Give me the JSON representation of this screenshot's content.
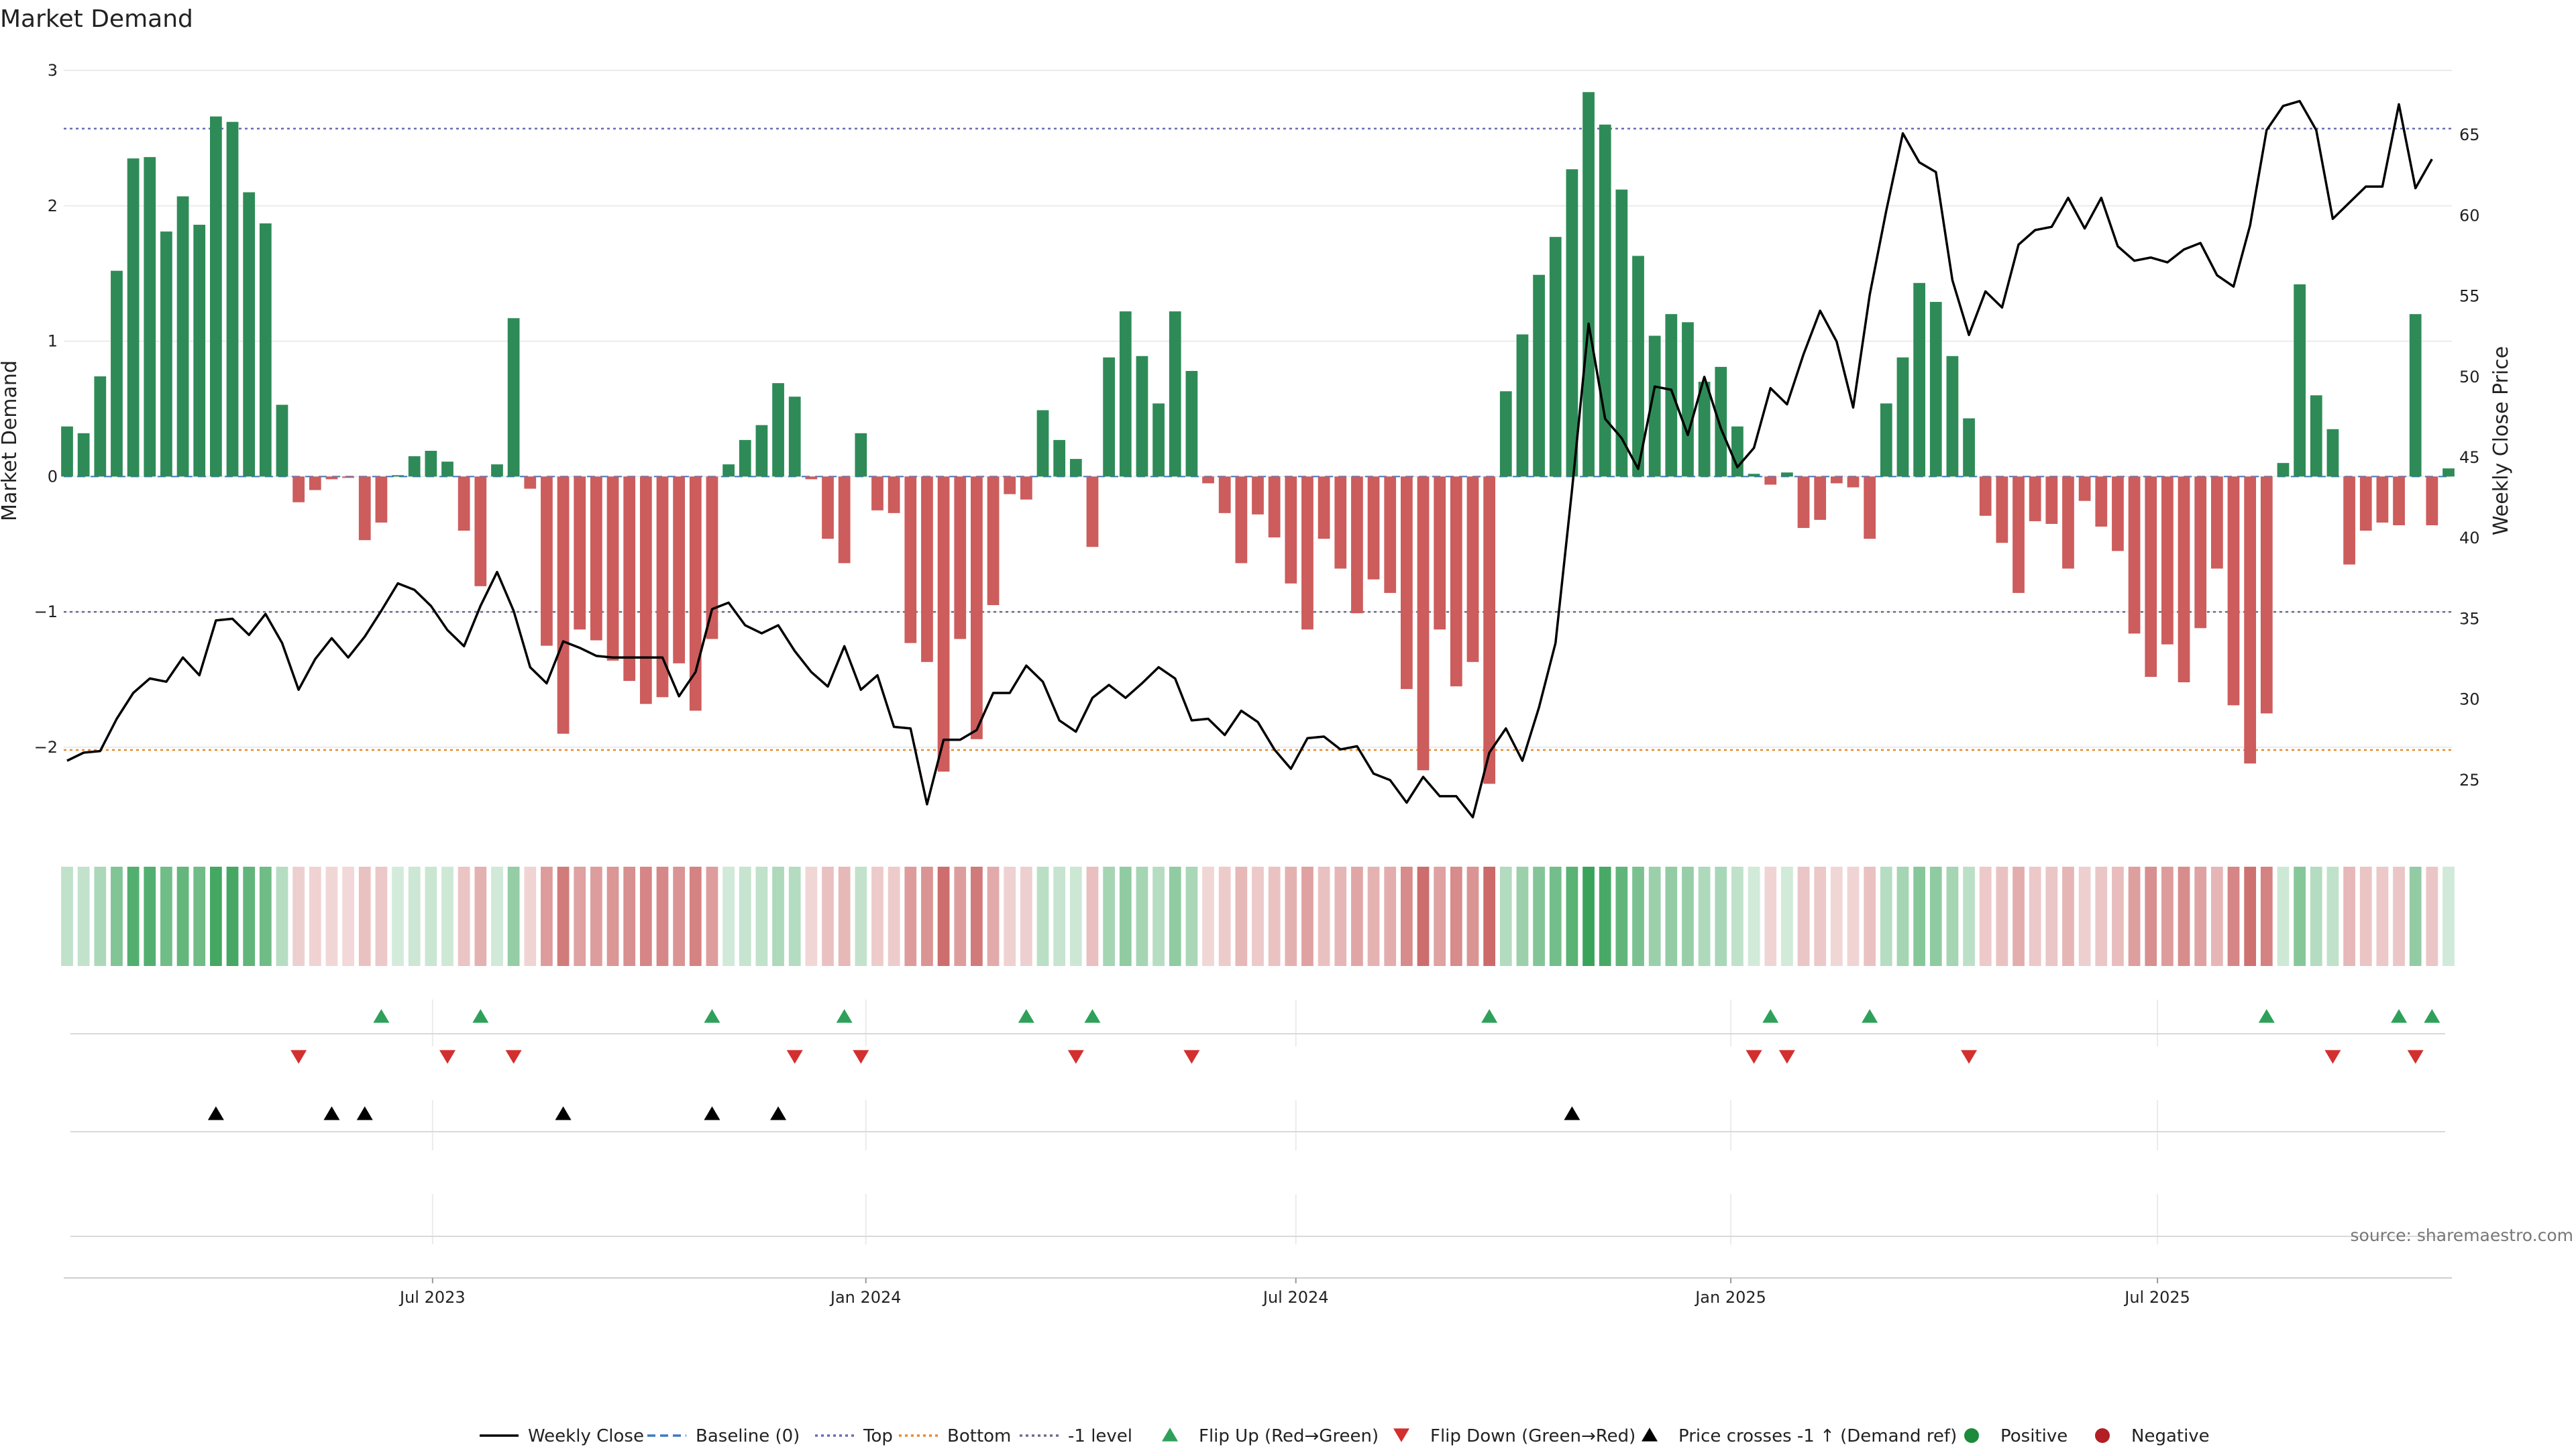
{
  "chart_data": {
    "type": "bar",
    "title": "Market Demand",
    "ylabel_left": "Market Demand",
    "ylabel_right": "Weekly Close Price",
    "ylim_left": [
      -2.6,
      3
    ],
    "yticks_left": [
      -2,
      -1,
      0,
      1,
      2,
      3
    ],
    "ytick_labels_left": [
      "−2",
      "−1",
      "0",
      "1",
      "2",
      "3"
    ],
    "ylim_right": [
      22,
      69
    ],
    "yticks_right": [
      25,
      30,
      35,
      40,
      45,
      50,
      55,
      60,
      65
    ],
    "x_start_week": 0,
    "x_end_week": 144,
    "x_ticks": [
      {
        "week": 22.1,
        "label": "Jul 2023"
      },
      {
        "week": 48.3,
        "label": "Jan 2024"
      },
      {
        "week": 74.3,
        "label": "Jul 2024"
      },
      {
        "week": 100.6,
        "label": "Jan 2025"
      },
      {
        "week": 126.4,
        "label": "Jul 2025"
      }
    ],
    "reference_lines": [
      {
        "name": "Top",
        "value": 2.57,
        "color": "#6b6bb0"
      },
      {
        "name": "Bottom",
        "value": -2.02,
        "color": "#e8892b"
      },
      {
        "name": "-1 level",
        "value": -1.0,
        "color": "#6b6b8a"
      },
      {
        "name": "Baseline (0)",
        "value": 0,
        "color": "#3b78c2"
      }
    ],
    "series": [
      {
        "name": "Market Demand",
        "values": [
          0.37,
          0.32,
          0.74,
          1.52,
          2.35,
          2.36,
          1.81,
          2.07,
          1.86,
          2.66,
          2.62,
          2.1,
          1.87,
          0.53,
          -0.19,
          -0.1,
          -0.02,
          -0.01,
          -0.47,
          -0.34,
          0.01,
          0.15,
          0.19,
          0.11,
          -0.4,
          -0.81,
          0.09,
          1.17,
          -0.09,
          -1.25,
          -1.9,
          -1.13,
          -1.21,
          -1.36,
          -1.51,
          -1.68,
          -1.63,
          -1.38,
          -1.73,
          -1.2,
          0.09,
          0.27,
          0.38,
          0.69,
          0.59,
          -0.02,
          -0.46,
          -0.64,
          0.32,
          -0.25,
          -0.27,
          -1.23,
          -1.37,
          -2.18,
          -1.2,
          -1.94,
          -0.95,
          -0.13,
          -0.17,
          0.49,
          0.27,
          0.13,
          -0.52,
          0.88,
          1.22,
          0.89,
          0.54,
          1.22,
          0.78,
          -0.05,
          -0.27,
          -0.64,
          -0.28,
          -0.45,
          -0.79,
          -1.13,
          -0.46,
          -0.68,
          -1.01,
          -0.76,
          -0.86,
          -1.57,
          -2.17,
          -1.13,
          -1.55,
          -1.37,
          -2.27,
          0.63,
          1.05,
          1.49,
          1.77,
          2.27,
          2.84,
          2.6,
          2.12,
          1.63,
          1.04,
          1.2,
          1.14,
          0.7,
          0.81,
          0.37,
          0.02,
          -0.06,
          0.03,
          -0.38,
          -0.32,
          -0.05,
          -0.08,
          -0.46,
          0.54,
          0.88,
          1.43,
          1.29,
          0.89,
          0.43,
          -0.29,
          -0.49,
          -0.86,
          -0.33,
          -0.35,
          -0.68,
          -0.18,
          -0.37,
          -0.55,
          -1.16,
          -1.48,
          -1.24,
          -1.52,
          -1.12,
          -0.68,
          -1.69,
          -2.12,
          -1.75,
          0.1,
          1.42,
          0.6,
          0.35,
          -0.65,
          -0.4,
          -0.34,
          -0.36,
          1.2,
          -0.36,
          0.06
        ]
      },
      {
        "name": "Weekly Close",
        "values": [
          26.2,
          26.7,
          26.8,
          28.8,
          30.4,
          31.3,
          31.1,
          32.6,
          31.5,
          34.9,
          35.0,
          34.0,
          35.3,
          33.5,
          30.6,
          32.5,
          33.8,
          32.6,
          33.9,
          35.5,
          37.2,
          36.8,
          35.8,
          34.3,
          33.3,
          35.8,
          37.9,
          35.5,
          32.0,
          31.0,
          33.6,
          33.2,
          32.7,
          32.6,
          32.6,
          32.6,
          32.6,
          30.2,
          31.7,
          35.6,
          36.0,
          34.6,
          34.1,
          34.6,
          33.0,
          31.7,
          30.8,
          33.3,
          30.6,
          31.5,
          28.3,
          28.2,
          23.5,
          27.5,
          27.5,
          28.1,
          30.4,
          30.4,
          32.1,
          31.1,
          28.7,
          28.0,
          30.1,
          30.9,
          30.1,
          31.0,
          32.0,
          31.3,
          28.7,
          28.8,
          27.8,
          29.3,
          28.6,
          26.9,
          25.7,
          27.6,
          27.7,
          26.9,
          27.1,
          25.4,
          25.0,
          23.6,
          25.2,
          24.0,
          24.0,
          22.7,
          26.7,
          28.2,
          26.2,
          29.5,
          33.5,
          43.0,
          53.3,
          47.4,
          46.2,
          44.3,
          49.4,
          49.2,
          46.4,
          50.0,
          46.8,
          44.4,
          45.6,
          49.3,
          48.3,
          51.4,
          54.1,
          52.2,
          48.1,
          55.1,
          60.3,
          65.1,
          63.3,
          62.7,
          56.0,
          52.6,
          55.3,
          54.3,
          58.2,
          59.1,
          59.3,
          61.1,
          59.2,
          61.1,
          58.1,
          57.2,
          57.4,
          57.1,
          57.9,
          58.3,
          56.3,
          55.6,
          59.4,
          65.3,
          66.8,
          67.1,
          65.3,
          59.8,
          60.8,
          61.8,
          61.8,
          66.9,
          61.7,
          63.5
        ]
      }
    ],
    "flip_up_weeks": [
      19,
      25,
      39,
      47,
      58,
      62,
      86,
      103,
      109,
      133,
      141,
      143
    ],
    "flip_down_weeks": [
      14,
      23,
      27,
      44,
      48,
      61,
      68,
      102,
      104,
      115,
      137,
      142
    ],
    "price_cross_weeks": [
      9,
      16,
      18,
      30,
      39,
      43,
      91
    ],
    "legend": [
      {
        "label": "Weekly Close",
        "kind": "line-solid",
        "color": "#000000"
      },
      {
        "label": "Baseline (0)",
        "kind": "line-dash",
        "color": "#3b78c2"
      },
      {
        "label": "Top",
        "kind": "line-dot",
        "color": "#6b6bb0"
      },
      {
        "label": "Bottom",
        "kind": "line-dot",
        "color": "#e8892b"
      },
      {
        "label": "-1 level",
        "kind": "line-dot",
        "color": "#6b6b8a"
      },
      {
        "label": "Flip Up (Red→Green)",
        "kind": "tri-up",
        "color": "#2fa05a"
      },
      {
        "label": "Flip Down (Green→Red)",
        "kind": "tri-down",
        "color": "#d32f2f"
      },
      {
        "label": "Price crosses -1 ↑ (Demand ref)",
        "kind": "tri-up",
        "color": "#000000"
      },
      {
        "label": "Positive",
        "kind": "dot",
        "color": "#1e8a3c"
      },
      {
        "label": "Negative",
        "kind": "dot",
        "color": "#b21f24"
      }
    ],
    "source": "source: sharemaestro.com"
  },
  "colors": {
    "positive_bar": "#2e8b57",
    "negative_bar": "#cd5c5c",
    "heat_positive": "#3aa35a",
    "heat_negative": "#c24d4d",
    "grid": "#ebebeb",
    "price_line": "#000000",
    "flip_up": "#2fa05a",
    "flip_down": "#d32f2f",
    "price_cross": "#000000"
  }
}
